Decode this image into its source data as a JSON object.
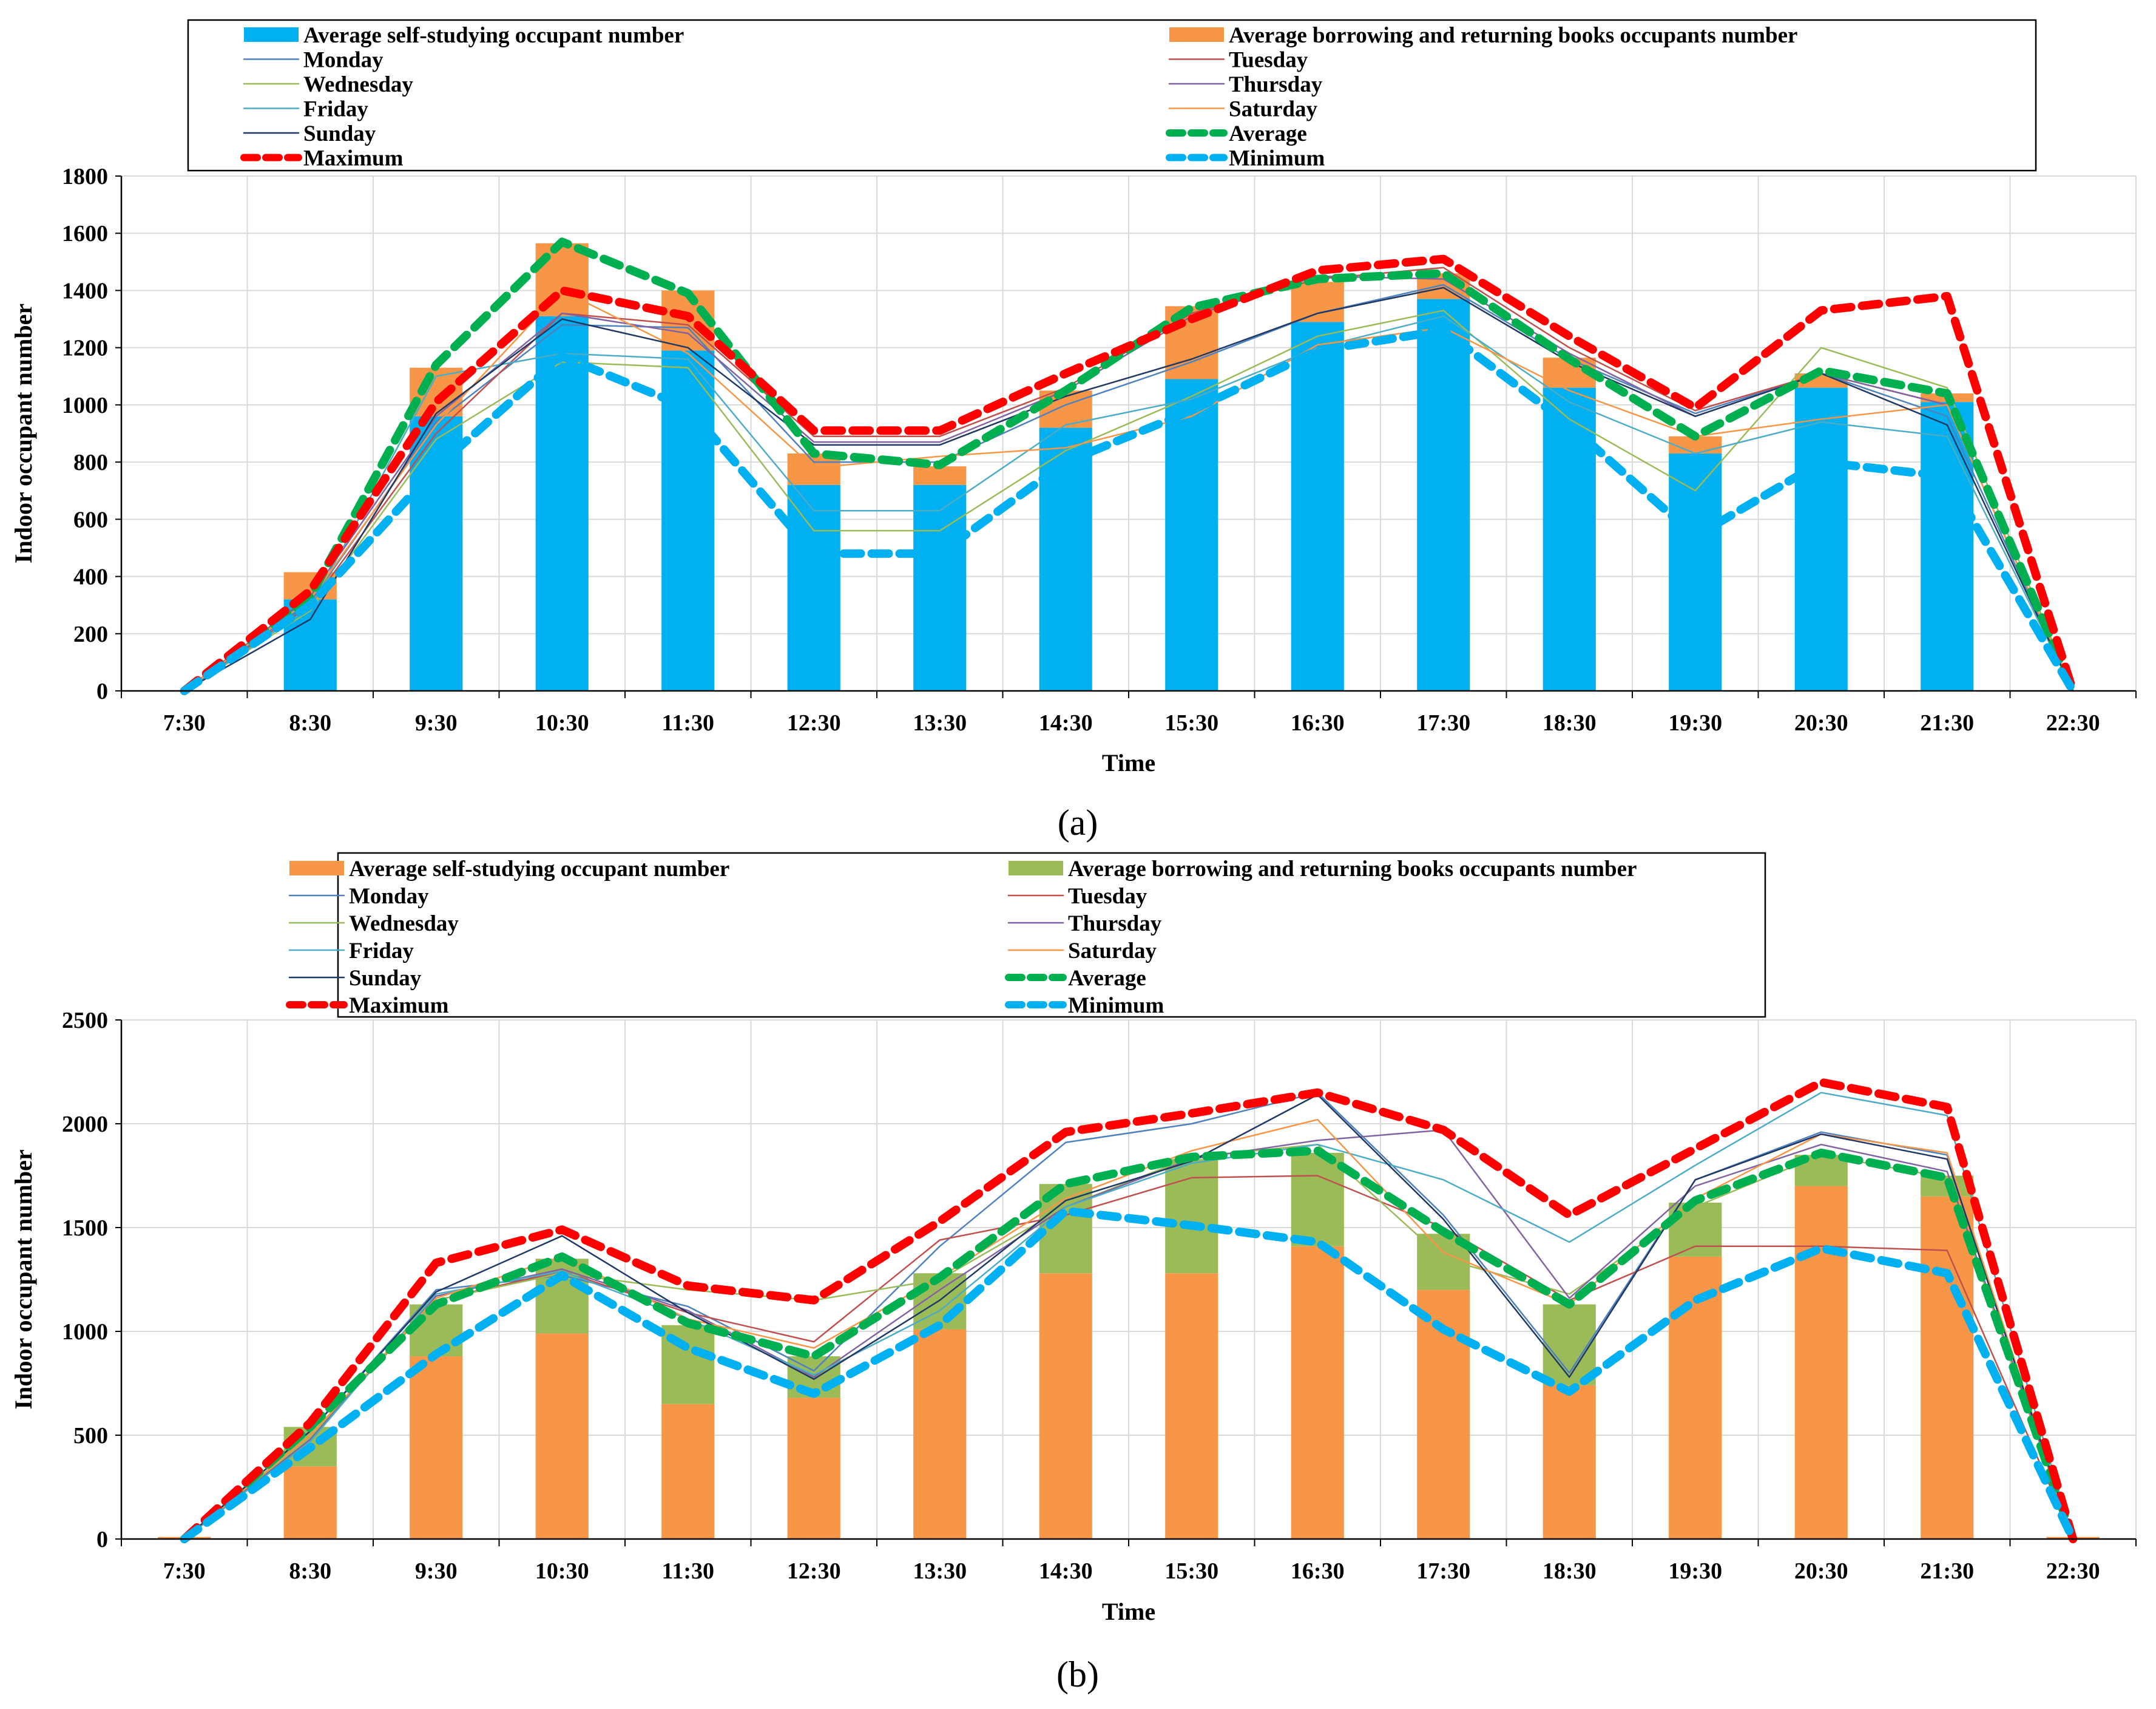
{
  "colors": {
    "a_self": "#00B0F0",
    "a_borrow": "#F79646",
    "b_self": "#F79646",
    "b_borrow": "#9BBB59",
    "monday": "#4F81BD",
    "tuesday": "#C0504D",
    "wednesday": "#9BBB59",
    "thursday": "#8064A2",
    "friday": "#4BACC6",
    "saturday": "#F79646",
    "sunday": "#1F3864",
    "average": "#00B050",
    "maximum": "#FF0000",
    "minimum": "#00B0F0",
    "grid": "#D9D9D9",
    "axis": "#000000"
  },
  "chart_data": [
    {
      "id": "a",
      "type": "bar+line",
      "caption": "(a)",
      "xlabel": "Time",
      "ylabel": "Indoor occupant number",
      "ylim": [
        0,
        1800
      ],
      "yticks": [
        0,
        200,
        400,
        600,
        800,
        1000,
        1200,
        1400,
        1600,
        1800
      ],
      "categories": [
        "7:30",
        "8:30",
        "9:30",
        "10:30",
        "11:30",
        "12:30",
        "13:30",
        "14:30",
        "15:30",
        "16:30",
        "17:30",
        "18:30",
        "19:30",
        "20:30",
        "21:30",
        "22:30"
      ],
      "bars": [
        {
          "name": "Average self-studying occupant number",
          "values": [
            0,
            320,
            960,
            1310,
            1190,
            720,
            720,
            920,
            1090,
            1290,
            1370,
            1060,
            830,
            1060,
            1010,
            0
          ]
        },
        {
          "name": "Average borrowing and returning books occupants number",
          "values": [
            0,
            95,
            170,
            255,
            210,
            110,
            65,
            130,
            255,
            140,
            90,
            105,
            60,
            50,
            30,
            0
          ]
        }
      ],
      "series": [
        {
          "name": "Monday",
          "values": [
            0,
            310,
            940,
            1280,
            1270,
            800,
            800,
            1000,
            1150,
            1320,
            1420,
            1160,
            970,
            1110,
            960,
            0
          ]
        },
        {
          "name": "Tuesday",
          "values": [
            0,
            300,
            900,
            1320,
            1280,
            890,
            890,
            1060,
            1320,
            1440,
            1480,
            1200,
            980,
            1110,
            1000,
            0
          ]
        },
        {
          "name": "Wednesday",
          "values": [
            0,
            280,
            880,
            1150,
            1130,
            560,
            560,
            840,
            1030,
            1240,
            1330,
            950,
            700,
            1200,
            1060,
            0
          ]
        },
        {
          "name": "Thursday",
          "values": [
            0,
            330,
            960,
            1320,
            1250,
            870,
            870,
            1050,
            1310,
            1450,
            1440,
            1180,
            960,
            1110,
            1000,
            0
          ]
        },
        {
          "name": "Friday",
          "values": [
            0,
            290,
            1100,
            1180,
            1160,
            630,
            630,
            930,
            1020,
            1200,
            1310,
            1010,
            830,
            940,
            890,
            0
          ]
        },
        {
          "name": "Saturday",
          "values": [
            0,
            320,
            930,
            1400,
            1180,
            780,
            820,
            850,
            960,
            1210,
            1270,
            1050,
            890,
            950,
            1000,
            0
          ]
        },
        {
          "name": "Sunday",
          "values": [
            0,
            250,
            970,
            1300,
            1200,
            860,
            860,
            1030,
            1160,
            1320,
            1410,
            1150,
            960,
            1110,
            930,
            0
          ]
        },
        {
          "name": "Average",
          "values": [
            0,
            330,
            1140,
            1570,
            1390,
            830,
            790,
            1050,
            1340,
            1440,
            1460,
            1160,
            890,
            1120,
            1040,
            0
          ]
        },
        {
          "name": "Maximum",
          "values": [
            0,
            350,
            1010,
            1400,
            1310,
            910,
            910,
            1110,
            1300,
            1470,
            1510,
            1240,
            990,
            1330,
            1380,
            0
          ]
        },
        {
          "name": "Minimum",
          "values": [
            0,
            300,
            780,
            1170,
            990,
            480,
            480,
            800,
            980,
            1190,
            1260,
            930,
            540,
            800,
            750,
            0
          ]
        }
      ],
      "legend": {
        "bar_labels": [
          "Average self-studying occupant number",
          "Average borrowing and returning books occupants number"
        ],
        "line_labels": [
          "Monday",
          "Tuesday",
          "Wednesday",
          "Thursday",
          "Friday",
          "Saturday",
          "Sunday",
          "Average",
          "Maximum",
          "Minimum"
        ]
      }
    },
    {
      "id": "b",
      "type": "bar+line",
      "caption": "(b)",
      "xlabel": "Time",
      "ylabel": "Indoor occupant number",
      "ylim": [
        0,
        2500
      ],
      "yticks": [
        0,
        500,
        1000,
        1500,
        2000,
        2500
      ],
      "categories": [
        "7:30",
        "8:30",
        "9:30",
        "10:30",
        "11:30",
        "12:30",
        "13:30",
        "14:30",
        "15:30",
        "16:30",
        "17:30",
        "18:30",
        "19:30",
        "20:30",
        "21:30",
        "22:30"
      ],
      "bars": [
        {
          "name": "Average self-studying occupant number",
          "values": [
            10,
            350,
            880,
            990,
            650,
            680,
            1010,
            1280,
            1280,
            1410,
            1200,
            740,
            1360,
            1700,
            1650,
            10
          ]
        },
        {
          "name": "Average borrowing and returning books occupants number",
          "values": [
            0,
            190,
            250,
            360,
            380,
            200,
            270,
            430,
            550,
            450,
            270,
            390,
            260,
            150,
            100,
            0
          ]
        }
      ],
      "series": [
        {
          "name": "Monday",
          "values": [
            0,
            520,
            1200,
            1270,
            1120,
            810,
            1410,
            1910,
            2000,
            2150,
            1560,
            800,
            1730,
            1960,
            1850,
            0
          ]
        },
        {
          "name": "Tuesday",
          "values": [
            0,
            500,
            1150,
            1290,
            1090,
            950,
            1440,
            1560,
            1740,
            1750,
            1500,
            1150,
            1410,
            1410,
            1390,
            0
          ]
        },
        {
          "name": "Wednesday",
          "values": [
            0,
            490,
            1150,
            1280,
            1200,
            1150,
            1250,
            1600,
            1840,
            1900,
            1350,
            1180,
            1600,
            1850,
            1740,
            0
          ]
        },
        {
          "name": "Thursday",
          "values": [
            0,
            480,
            1170,
            1300,
            1100,
            780,
            1200,
            1600,
            1830,
            1920,
            1970,
            1160,
            1700,
            1900,
            1770,
            0
          ]
        },
        {
          "name": "Friday",
          "values": [
            0,
            470,
            1180,
            1290,
            1060,
            790,
            1100,
            1600,
            1810,
            1900,
            1730,
            1430,
            1800,
            2150,
            2040,
            0
          ]
        },
        {
          "name": "Saturday",
          "values": [
            0,
            500,
            1160,
            1360,
            1060,
            920,
            1260,
            1640,
            1870,
            2020,
            1380,
            1130,
            1640,
            1950,
            1860,
            0
          ]
        },
        {
          "name": "Sunday",
          "values": [
            0,
            520,
            1190,
            1460,
            1090,
            770,
            1150,
            1630,
            1820,
            2140,
            1540,
            780,
            1730,
            1950,
            1830,
            0
          ]
        },
        {
          "name": "Average",
          "values": [
            0,
            540,
            1130,
            1360,
            1040,
            880,
            1260,
            1710,
            1840,
            1870,
            1480,
            1130,
            1630,
            1860,
            1740,
            0
          ]
        },
        {
          "name": "Maximum",
          "values": [
            0,
            560,
            1330,
            1490,
            1220,
            1150,
            1530,
            1960,
            2050,
            2150,
            1970,
            1560,
            1880,
            2200,
            2080,
            0
          ]
        },
        {
          "name": "Minimum",
          "values": [
            0,
            440,
            890,
            1270,
            920,
            700,
            1030,
            1580,
            1510,
            1430,
            1010,
            710,
            1150,
            1400,
            1280,
            0
          ]
        }
      ],
      "legend": {
        "bar_labels": [
          "Average self-studying occupant number",
          "Average borrowing and returning books occupants number"
        ],
        "line_labels": [
          "Monday",
          "Tuesday",
          "Wednesday",
          "Thursday",
          "Friday",
          "Saturday",
          "Sunday",
          "Average",
          "Maximum",
          "Minimum"
        ]
      }
    }
  ]
}
